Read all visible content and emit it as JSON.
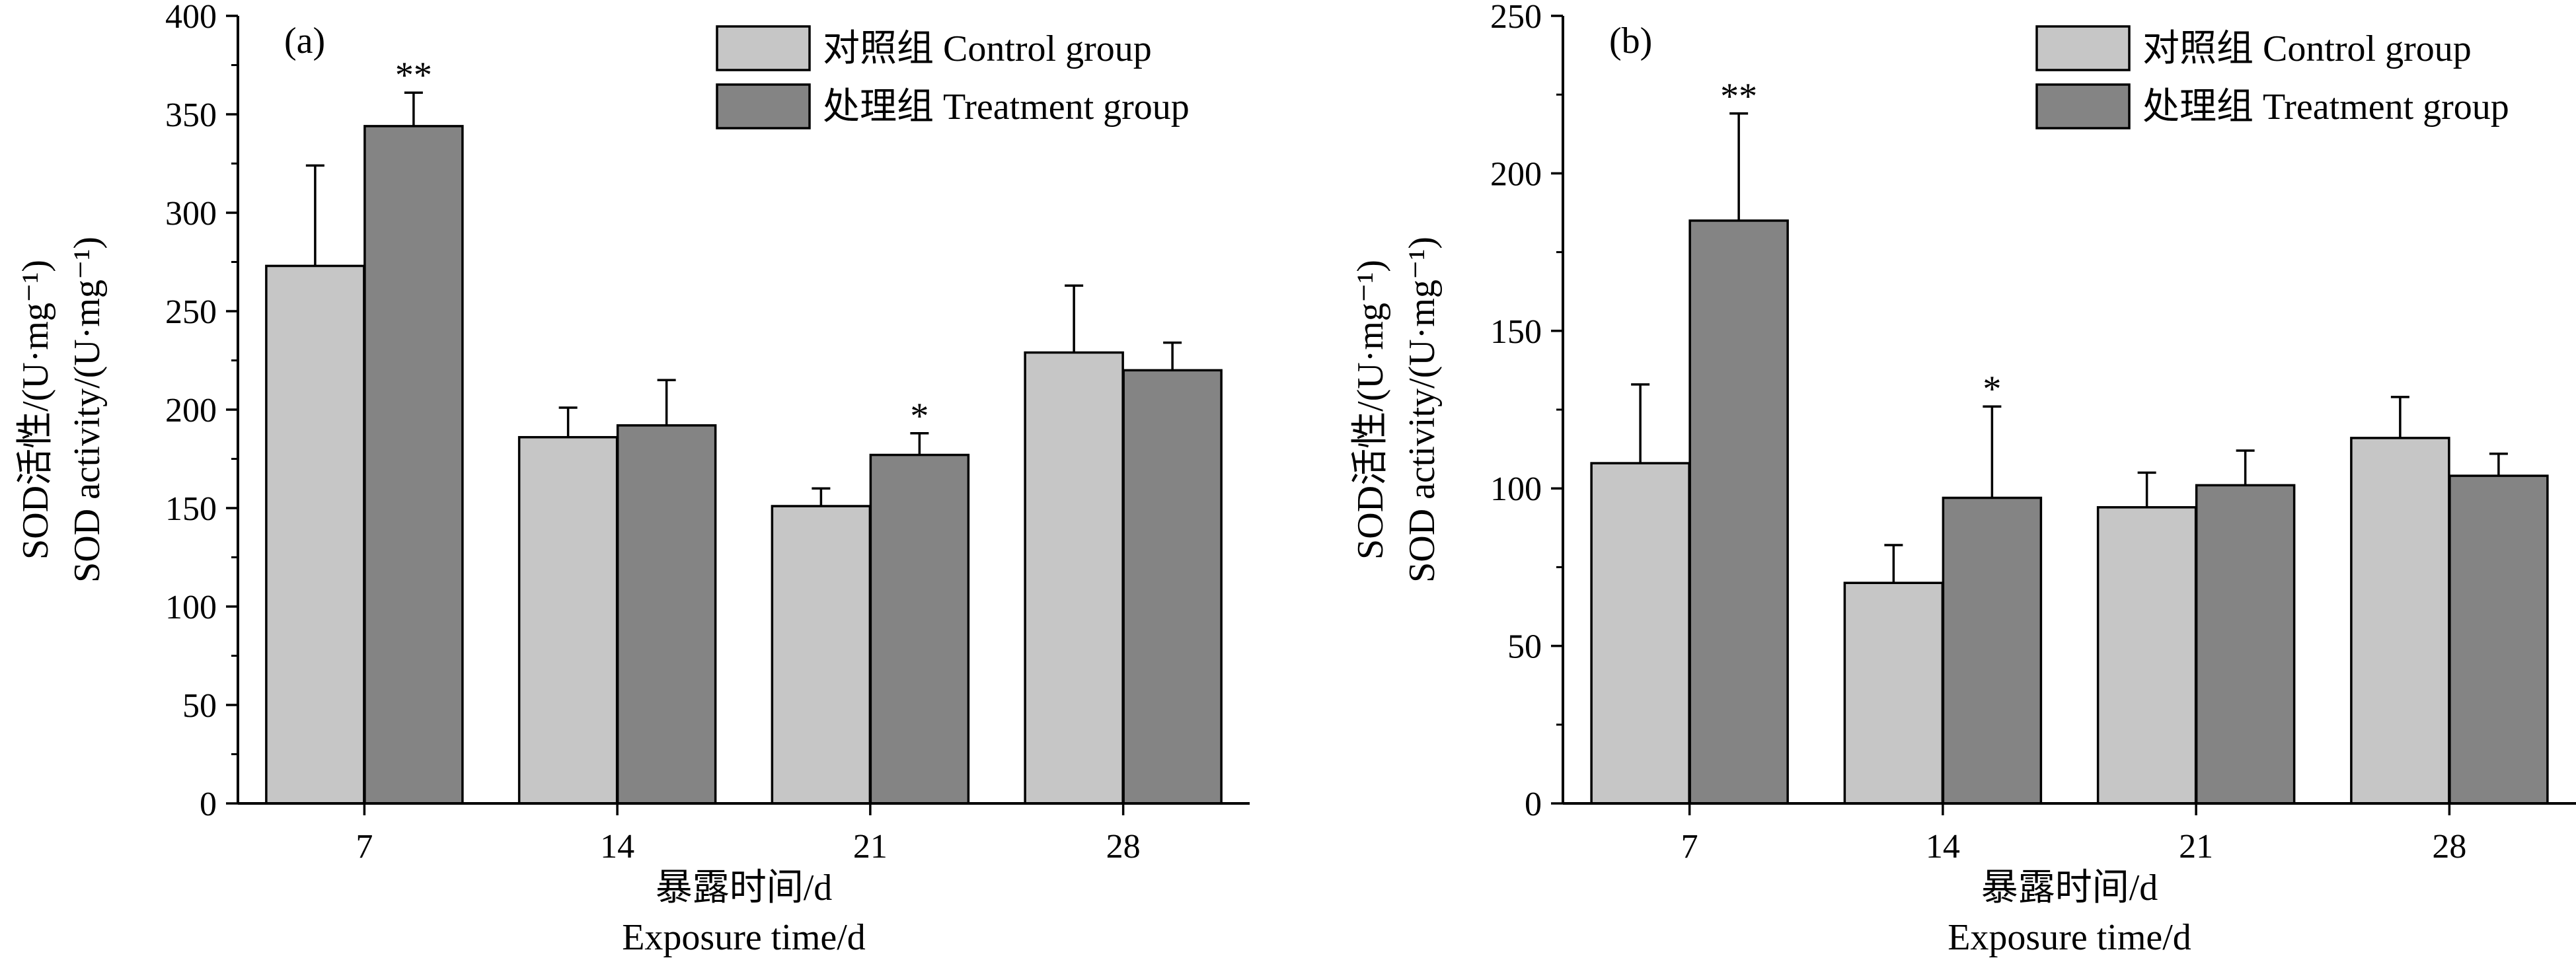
{
  "chart_data": [
    {
      "type": "bar",
      "panel_label": "(a)",
      "categories": [
        "7",
        "14",
        "21",
        "28"
      ],
      "series": [
        {
          "name": "对照组 Control group",
          "values": [
            273,
            186,
            151,
            229
          ],
          "errors": [
            51,
            15,
            9,
            34
          ],
          "significance": [
            "",
            "",
            "",
            ""
          ]
        },
        {
          "name": "处理组 Treatment group",
          "values": [
            344,
            192,
            177,
            220
          ],
          "errors": [
            17,
            23,
            11,
            14
          ],
          "significance": [
            "**",
            "",
            "*",
            ""
          ]
        }
      ],
      "xlabel": [
        "暴露时间/d",
        "Exposure time/d"
      ],
      "ylabel": [
        "SOD活性/(U·mg⁻¹)",
        "SOD activity/(U·mg⁻¹)"
      ],
      "yticks": [
        "0",
        "50",
        "100",
        "150",
        "200",
        "250",
        "300",
        "350",
        "400"
      ],
      "ylim": [
        0,
        400
      ],
      "legend_position": "top-right",
      "colors": {
        "control": "#c6c6c6",
        "treatment": "#848484"
      },
      "grid": false
    },
    {
      "type": "bar",
      "panel_label": "(b)",
      "categories": [
        "7",
        "14",
        "21",
        "28"
      ],
      "series": [
        {
          "name": "对照组 Control group",
          "values": [
            108,
            70,
            94,
            116
          ],
          "errors": [
            25,
            12,
            11,
            13
          ],
          "significance": [
            "",
            "",
            "",
            ""
          ]
        },
        {
          "name": "处理组 Treatment group",
          "values": [
            185,
            97,
            101,
            104
          ],
          "errors": [
            34,
            29,
            11,
            7
          ],
          "significance": [
            "**",
            "*",
            "",
            ""
          ]
        }
      ],
      "xlabel": [
        "暴露时间/d",
        "Exposure time/d"
      ],
      "ylabel": [
        "SOD活性/(U·mg⁻¹)",
        "SOD activity/(U·mg⁻¹)"
      ],
      "yticks": [
        "0",
        "50",
        "100",
        "150",
        "200",
        "250"
      ],
      "ylim": [
        0,
        250
      ],
      "legend_position": "top-right",
      "colors": {
        "control": "#c6c6c6",
        "treatment": "#848484"
      },
      "grid": false
    }
  ]
}
